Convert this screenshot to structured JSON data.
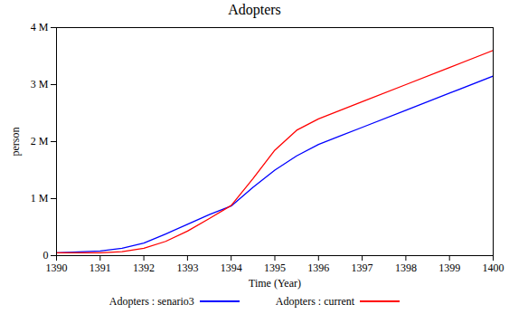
{
  "chart_data": {
    "type": "line",
    "title": "Adopters",
    "x_label": "Time (Year)",
    "y_label": "person",
    "x": [
      1390,
      1391,
      1391.5,
      1392,
      1392.5,
      1393,
      1393.5,
      1394,
      1394.5,
      1395,
      1395.5,
      1396,
      1396.5,
      1397,
      1398,
      1399,
      1400
    ],
    "series": [
      {
        "name": "Adopters : senario3",
        "color": "#0000ff",
        "values": [
          50000,
          80000,
          130000,
          220000,
          380000,
          550000,
          720000,
          870000,
          1200000,
          1500000,
          1750000,
          1950000,
          2100000,
          2250000,
          2550000,
          2850000,
          3150000
        ]
      },
      {
        "name": "Adopters : current",
        "color": "#ff0000",
        "values": [
          50000,
          50000,
          70000,
          130000,
          250000,
          430000,
          650000,
          880000,
          1350000,
          1850000,
          2200000,
          2400000,
          2550000,
          2700000,
          3000000,
          3300000,
          3600000
        ]
      }
    ],
    "xlim": [
      1390,
      1400
    ],
    "xticks": [
      1390,
      1391,
      1392,
      1393,
      1394,
      1395,
      1396,
      1397,
      1398,
      1399,
      1400
    ],
    "ylim": [
      0,
      4000000
    ],
    "yticks": [
      {
        "value": 0,
        "label": "0"
      },
      {
        "value": 1000000,
        "label": "1 M"
      },
      {
        "value": 2000000,
        "label": "2 M"
      },
      {
        "value": 3000000,
        "label": "3 M"
      },
      {
        "value": 4000000,
        "label": "4 M"
      }
    ],
    "grid": false,
    "legend": "bottom"
  }
}
